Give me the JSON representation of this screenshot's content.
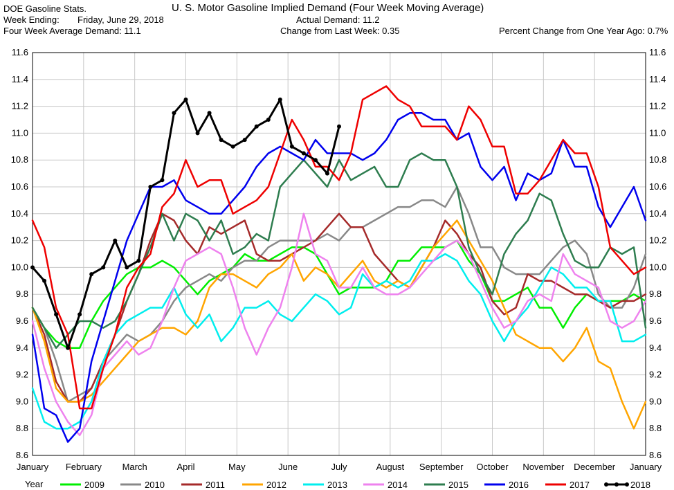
{
  "header": {
    "source": "DOE Gasoline Stats.",
    "title": "U. S. Motor Gasoline Implied Demand (Four Week Moving Average)",
    "week_ending_label": "Week Ending:",
    "week_ending_value": "Friday, June 29, 2018",
    "four_week_label": "Four Week Average Demand: 11.1",
    "actual_demand": "Actual Demand: 11.2",
    "change_last_week": "Change from Last Week: 0.35",
    "pct_change_year": "Percent Change from One Year Ago:  0.7%"
  },
  "legend": {
    "label": "Year"
  },
  "chart_data": {
    "type": "line",
    "title": "U. S. Motor Gasoline Implied Demand (Four Week Moving Average)",
    "xlabel": "",
    "ylabel": "",
    "x_unit": "week of year (0 = start of January, 52 = end of December)",
    "x_range": [
      0,
      52
    ],
    "ylim": [
      8.6,
      11.6
    ],
    "y_ticks": [
      "8.6",
      "8.8",
      "9.0",
      "9.2",
      "9.4",
      "9.6",
      "9.8",
      "10.0",
      "10.2",
      "10.4",
      "10.6",
      "10.8",
      "11.0",
      "11.2",
      "11.4",
      "11.6"
    ],
    "month_labels": [
      "January",
      "February",
      "March",
      "April",
      "May",
      "June",
      "July",
      "August",
      "September",
      "October",
      "November",
      "December",
      "January"
    ],
    "grid": true,
    "legend_position": "bottom",
    "series": [
      {
        "name": "2009",
        "color": "#00ee00",
        "values": [
          9.7,
          9.55,
          9.45,
          9.4,
          9.4,
          9.6,
          9.75,
          9.85,
          9.95,
          10.0,
          10.0,
          10.05,
          10.0,
          9.9,
          9.8,
          9.9,
          9.95,
          10.0,
          10.1,
          10.05,
          10.05,
          10.1,
          10.15,
          10.15,
          10.1,
          9.95,
          9.8,
          9.85,
          9.85,
          9.85,
          9.9,
          10.05,
          10.05,
          10.15,
          10.15,
          10.15,
          10.2,
          10.05,
          9.95,
          9.75,
          9.75,
          9.8,
          9.85,
          9.7,
          9.7,
          9.55,
          9.7,
          9.8,
          9.75,
          9.75,
          9.75,
          9.8,
          9.75
        ]
      },
      {
        "name": "2010",
        "color": "#888888",
        "values": [
          9.7,
          9.55,
          9.3,
          9.0,
          9.05,
          9.1,
          9.3,
          9.4,
          9.5,
          9.45,
          9.5,
          9.6,
          9.75,
          9.85,
          9.9,
          9.95,
          9.9,
          10.0,
          10.05,
          10.05,
          10.15,
          10.2,
          10.2,
          10.2,
          10.2,
          10.25,
          10.2,
          10.3,
          10.3,
          10.35,
          10.4,
          10.45,
          10.45,
          10.5,
          10.5,
          10.45,
          10.6,
          10.4,
          10.15,
          10.15,
          10.0,
          9.95,
          9.95,
          9.95,
          10.05,
          10.15,
          10.2,
          10.1,
          9.8,
          9.7,
          9.7,
          9.85,
          10.1
        ]
      },
      {
        "name": "2011",
        "color": "#a52a2a",
        "values": [
          9.7,
          9.5,
          9.15,
          9.0,
          9.0,
          9.1,
          9.3,
          9.5,
          9.75,
          9.95,
          10.2,
          10.4,
          10.35,
          10.2,
          10.1,
          10.3,
          10.25,
          10.3,
          10.35,
          10.1,
          10.05,
          10.05,
          10.1,
          10.15,
          10.2,
          10.3,
          10.4,
          10.3,
          10.3,
          10.1,
          10.0,
          9.9,
          9.85,
          10.0,
          10.15,
          10.35,
          10.25,
          10.1,
          10.0,
          9.75,
          9.65,
          9.7,
          9.95,
          9.9,
          9.9,
          9.85,
          9.8,
          9.8,
          9.75,
          9.7,
          9.75,
          9.75,
          9.8
        ]
      },
      {
        "name": "2012",
        "color": "#ffa500",
        "values": [
          9.7,
          9.45,
          9.1,
          9.0,
          9.0,
          9.05,
          9.15,
          9.25,
          9.35,
          9.45,
          9.5,
          9.55,
          9.55,
          9.5,
          9.6,
          9.85,
          9.95,
          9.95,
          9.9,
          9.85,
          9.95,
          10.0,
          10.1,
          9.9,
          10.0,
          9.95,
          9.85,
          9.95,
          10.05,
          9.9,
          9.85,
          9.9,
          9.85,
          10.0,
          10.15,
          10.25,
          10.35,
          10.2,
          10.05,
          9.9,
          9.7,
          9.5,
          9.45,
          9.4,
          9.4,
          9.3,
          9.4,
          9.55,
          9.3,
          9.25,
          9.0,
          8.8,
          9.0
        ]
      },
      {
        "name": "2013",
        "color": "#00eeee",
        "values": [
          9.1,
          8.85,
          8.8,
          8.8,
          8.85,
          9.0,
          9.3,
          9.5,
          9.6,
          9.65,
          9.7,
          9.7,
          9.85,
          9.65,
          9.55,
          9.65,
          9.45,
          9.55,
          9.7,
          9.7,
          9.75,
          9.65,
          9.6,
          9.7,
          9.8,
          9.75,
          9.65,
          9.7,
          9.95,
          9.85,
          9.9,
          9.85,
          9.9,
          10.05,
          10.05,
          10.1,
          10.05,
          9.9,
          9.8,
          9.6,
          9.45,
          9.6,
          9.7,
          9.85,
          10.0,
          9.95,
          9.85,
          9.85,
          9.75,
          9.75,
          9.45,
          9.45,
          9.5
        ]
      },
      {
        "name": "2014",
        "color": "#ee82ee",
        "values": [
          9.6,
          9.25,
          9.0,
          8.85,
          8.75,
          8.9,
          9.25,
          9.35,
          9.45,
          9.35,
          9.4,
          9.6,
          9.85,
          10.05,
          10.1,
          10.15,
          10.1,
          9.85,
          9.55,
          9.35,
          9.55,
          9.7,
          10.0,
          10.4,
          10.1,
          10.05,
          9.85,
          9.85,
          10.0,
          9.85,
          9.8,
          9.8,
          9.85,
          9.95,
          10.05,
          10.15,
          10.2,
          10.1,
          9.9,
          9.7,
          9.55,
          9.6,
          9.75,
          9.8,
          9.75,
          10.1,
          9.95,
          9.9,
          9.85,
          9.6,
          9.55,
          9.6,
          9.75
        ]
      },
      {
        "name": "2015",
        "color": "#2e7d4f",
        "values": [
          9.7,
          9.55,
          9.4,
          9.5,
          9.6,
          9.6,
          9.55,
          9.6,
          9.75,
          9.95,
          10.15,
          10.4,
          10.2,
          10.4,
          10.35,
          10.2,
          10.35,
          10.1,
          10.15,
          10.25,
          10.2,
          10.6,
          10.7,
          10.8,
          10.7,
          10.6,
          10.8,
          10.65,
          10.7,
          10.75,
          10.6,
          10.6,
          10.8,
          10.85,
          10.8,
          10.8,
          10.6,
          10.15,
          9.95,
          9.8,
          10.1,
          10.25,
          10.35,
          10.55,
          10.5,
          10.25,
          10.05,
          10.0,
          10.0,
          10.15,
          10.1,
          10.15,
          9.55
        ]
      },
      {
        "name": "2016",
        "color": "#0000ee",
        "values": [
          9.5,
          8.95,
          8.9,
          8.7,
          8.8,
          9.3,
          9.6,
          9.9,
          10.2,
          10.4,
          10.6,
          10.6,
          10.65,
          10.5,
          10.45,
          10.4,
          10.4,
          10.5,
          10.6,
          10.75,
          10.85,
          10.9,
          10.85,
          10.8,
          10.95,
          10.85,
          10.85,
          10.85,
          10.8,
          10.85,
          10.95,
          11.1,
          11.15,
          11.15,
          11.1,
          11.1,
          10.95,
          11.0,
          10.75,
          10.65,
          10.75,
          10.5,
          10.7,
          10.65,
          10.7,
          10.95,
          10.75,
          10.75,
          10.45,
          10.3,
          10.45,
          10.6,
          10.35
        ]
      },
      {
        "name": "2017",
        "color": "#ee0000",
        "values": [
          10.35,
          10.15,
          9.7,
          9.5,
          8.95,
          8.95,
          9.25,
          9.5,
          9.85,
          10.0,
          10.1,
          10.45,
          10.55,
          10.8,
          10.6,
          10.65,
          10.65,
          10.4,
          10.45,
          10.5,
          10.6,
          10.85,
          11.1,
          10.95,
          10.75,
          10.75,
          10.65,
          10.85,
          11.25,
          11.3,
          11.35,
          11.25,
          11.2,
          11.05,
          11.05,
          11.05,
          10.95,
          11.2,
          11.1,
          10.9,
          10.9,
          10.55,
          10.55,
          10.65,
          10.8,
          10.95,
          10.85,
          10.85,
          10.6,
          10.15,
          10.05,
          9.95,
          10.0
        ]
      },
      {
        "name": "2018",
        "color": "#000000",
        "values": [
          10.0,
          9.9,
          9.65,
          9.4,
          9.65,
          9.95,
          10.0,
          10.2,
          10.0,
          10.05,
          10.6,
          10.65,
          11.15,
          11.25,
          11.0,
          11.15,
          10.95,
          10.9,
          10.95,
          11.05,
          11.1,
          11.25,
          10.9,
          10.85,
          10.8,
          10.7,
          11.05
        ]
      }
    ]
  }
}
